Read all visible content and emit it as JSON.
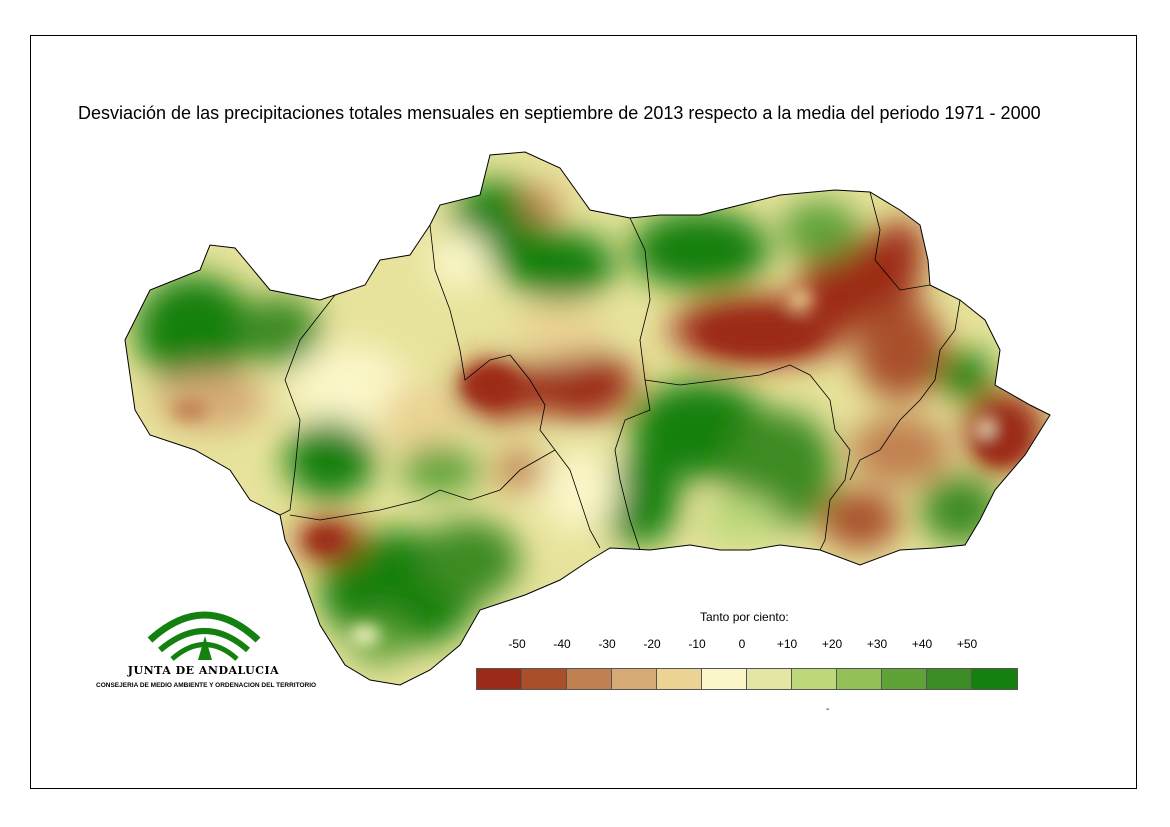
{
  "title": "Desviación de las precipitaciones totales mensuales en septiembre de 2013 respecto a la media del periodo 1971 - 2000",
  "legend": {
    "title": "Tanto por ciento:",
    "ticks": [
      "-50",
      "-40",
      "-30",
      "-20",
      "-10",
      "0",
      "+10",
      "+20",
      "+30",
      "+40",
      "+50"
    ],
    "colors": [
      "#9c2a18",
      "#a9502b",
      "#c0804f",
      "#d5aa75",
      "#ead393",
      "#fbf6c8",
      "#e4e7a4",
      "#bcd87a",
      "#93c158",
      "#5fa338",
      "#3d8b24",
      "#14800f"
    ],
    "footnote": "-"
  },
  "logo": {
    "name": "JUNTA DE ANDALUCIA",
    "subtitle": "CONSEJERIA DE MEDIO AMBIENTE Y ORDENACION DEL TERRITORIO"
  },
  "map": {
    "region": "Andalucía",
    "colors": {
      "dry": "#9c2a18",
      "neutral": "#fbf6c8",
      "wet": "#14800f",
      "border": "#000000"
    }
  }
}
